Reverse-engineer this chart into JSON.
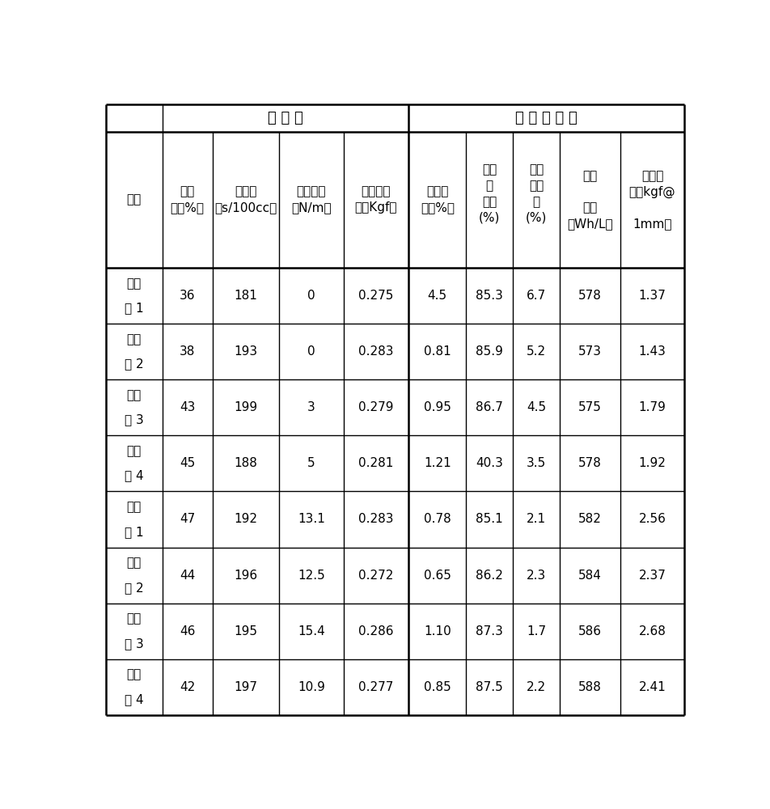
{
  "header_group1": "隔 离 膜",
  "header_group2": "锂 离 子 电 池",
  "col_headers_line1": [
    "项目",
    "孔隙",
    "透气度",
    "界面粘接",
    "耐穿刺强",
    "热收缩",
    "容量",
    "厚度",
    "能量",
    "电池硬"
  ],
  "col_headers_line2": [
    "",
    "率（%）",
    "（s/100cc）",
    "（N/m）",
    "度（Kgf）",
    "率（%）",
    "保",
    "膨胀",
    "",
    "度（kgf@"
  ],
  "col_headers_line3": [
    "",
    "",
    "",
    "",
    "",
    "",
    "持率",
    "率",
    "密度",
    ""
  ],
  "col_headers_line4": [
    "",
    "",
    "",
    "",
    "",
    "",
    "(%)",
    "(%)",
    "（Wh/L）",
    "1mm）"
  ],
  "row_labels_top": [
    "对比",
    "对比",
    "对比",
    "对比",
    "实施",
    "实施",
    "实施",
    "实施"
  ],
  "row_labels_bot": [
    "例 1",
    "例 2",
    "例 3",
    "例 4",
    "例 1",
    "例 2",
    "例 3",
    "例 4"
  ],
  "data": [
    [
      "36",
      "181",
      "0",
      "0.275",
      "4.5",
      "85.3",
      "6.7",
      "578",
      "1.37"
    ],
    [
      "38",
      "193",
      "0",
      "0.283",
      "0.81",
      "85.9",
      "5.2",
      "573",
      "1.43"
    ],
    [
      "43",
      "199",
      "3",
      "0.279",
      "0.95",
      "86.7",
      "4.5",
      "575",
      "1.79"
    ],
    [
      "45",
      "188",
      "5",
      "0.281",
      "1.21",
      "40.3",
      "3.5",
      "578",
      "1.92"
    ],
    [
      "47",
      "192",
      "13.1",
      "0.283",
      "0.78",
      "85.1",
      "2.1",
      "582",
      "2.56"
    ],
    [
      "44",
      "196",
      "12.5",
      "0.272",
      "0.65",
      "86.2",
      "2.3",
      "584",
      "2.37"
    ],
    [
      "46",
      "195",
      "15.4",
      "0.286",
      "1.10",
      "87.3",
      "1.7",
      "586",
      "2.68"
    ],
    [
      "42",
      "197",
      "10.9",
      "0.277",
      "0.85",
      "87.5",
      "2.2",
      "588",
      "2.41"
    ]
  ],
  "bg_color": "#ffffff",
  "text_color": "#000000",
  "line_color": "#000000"
}
